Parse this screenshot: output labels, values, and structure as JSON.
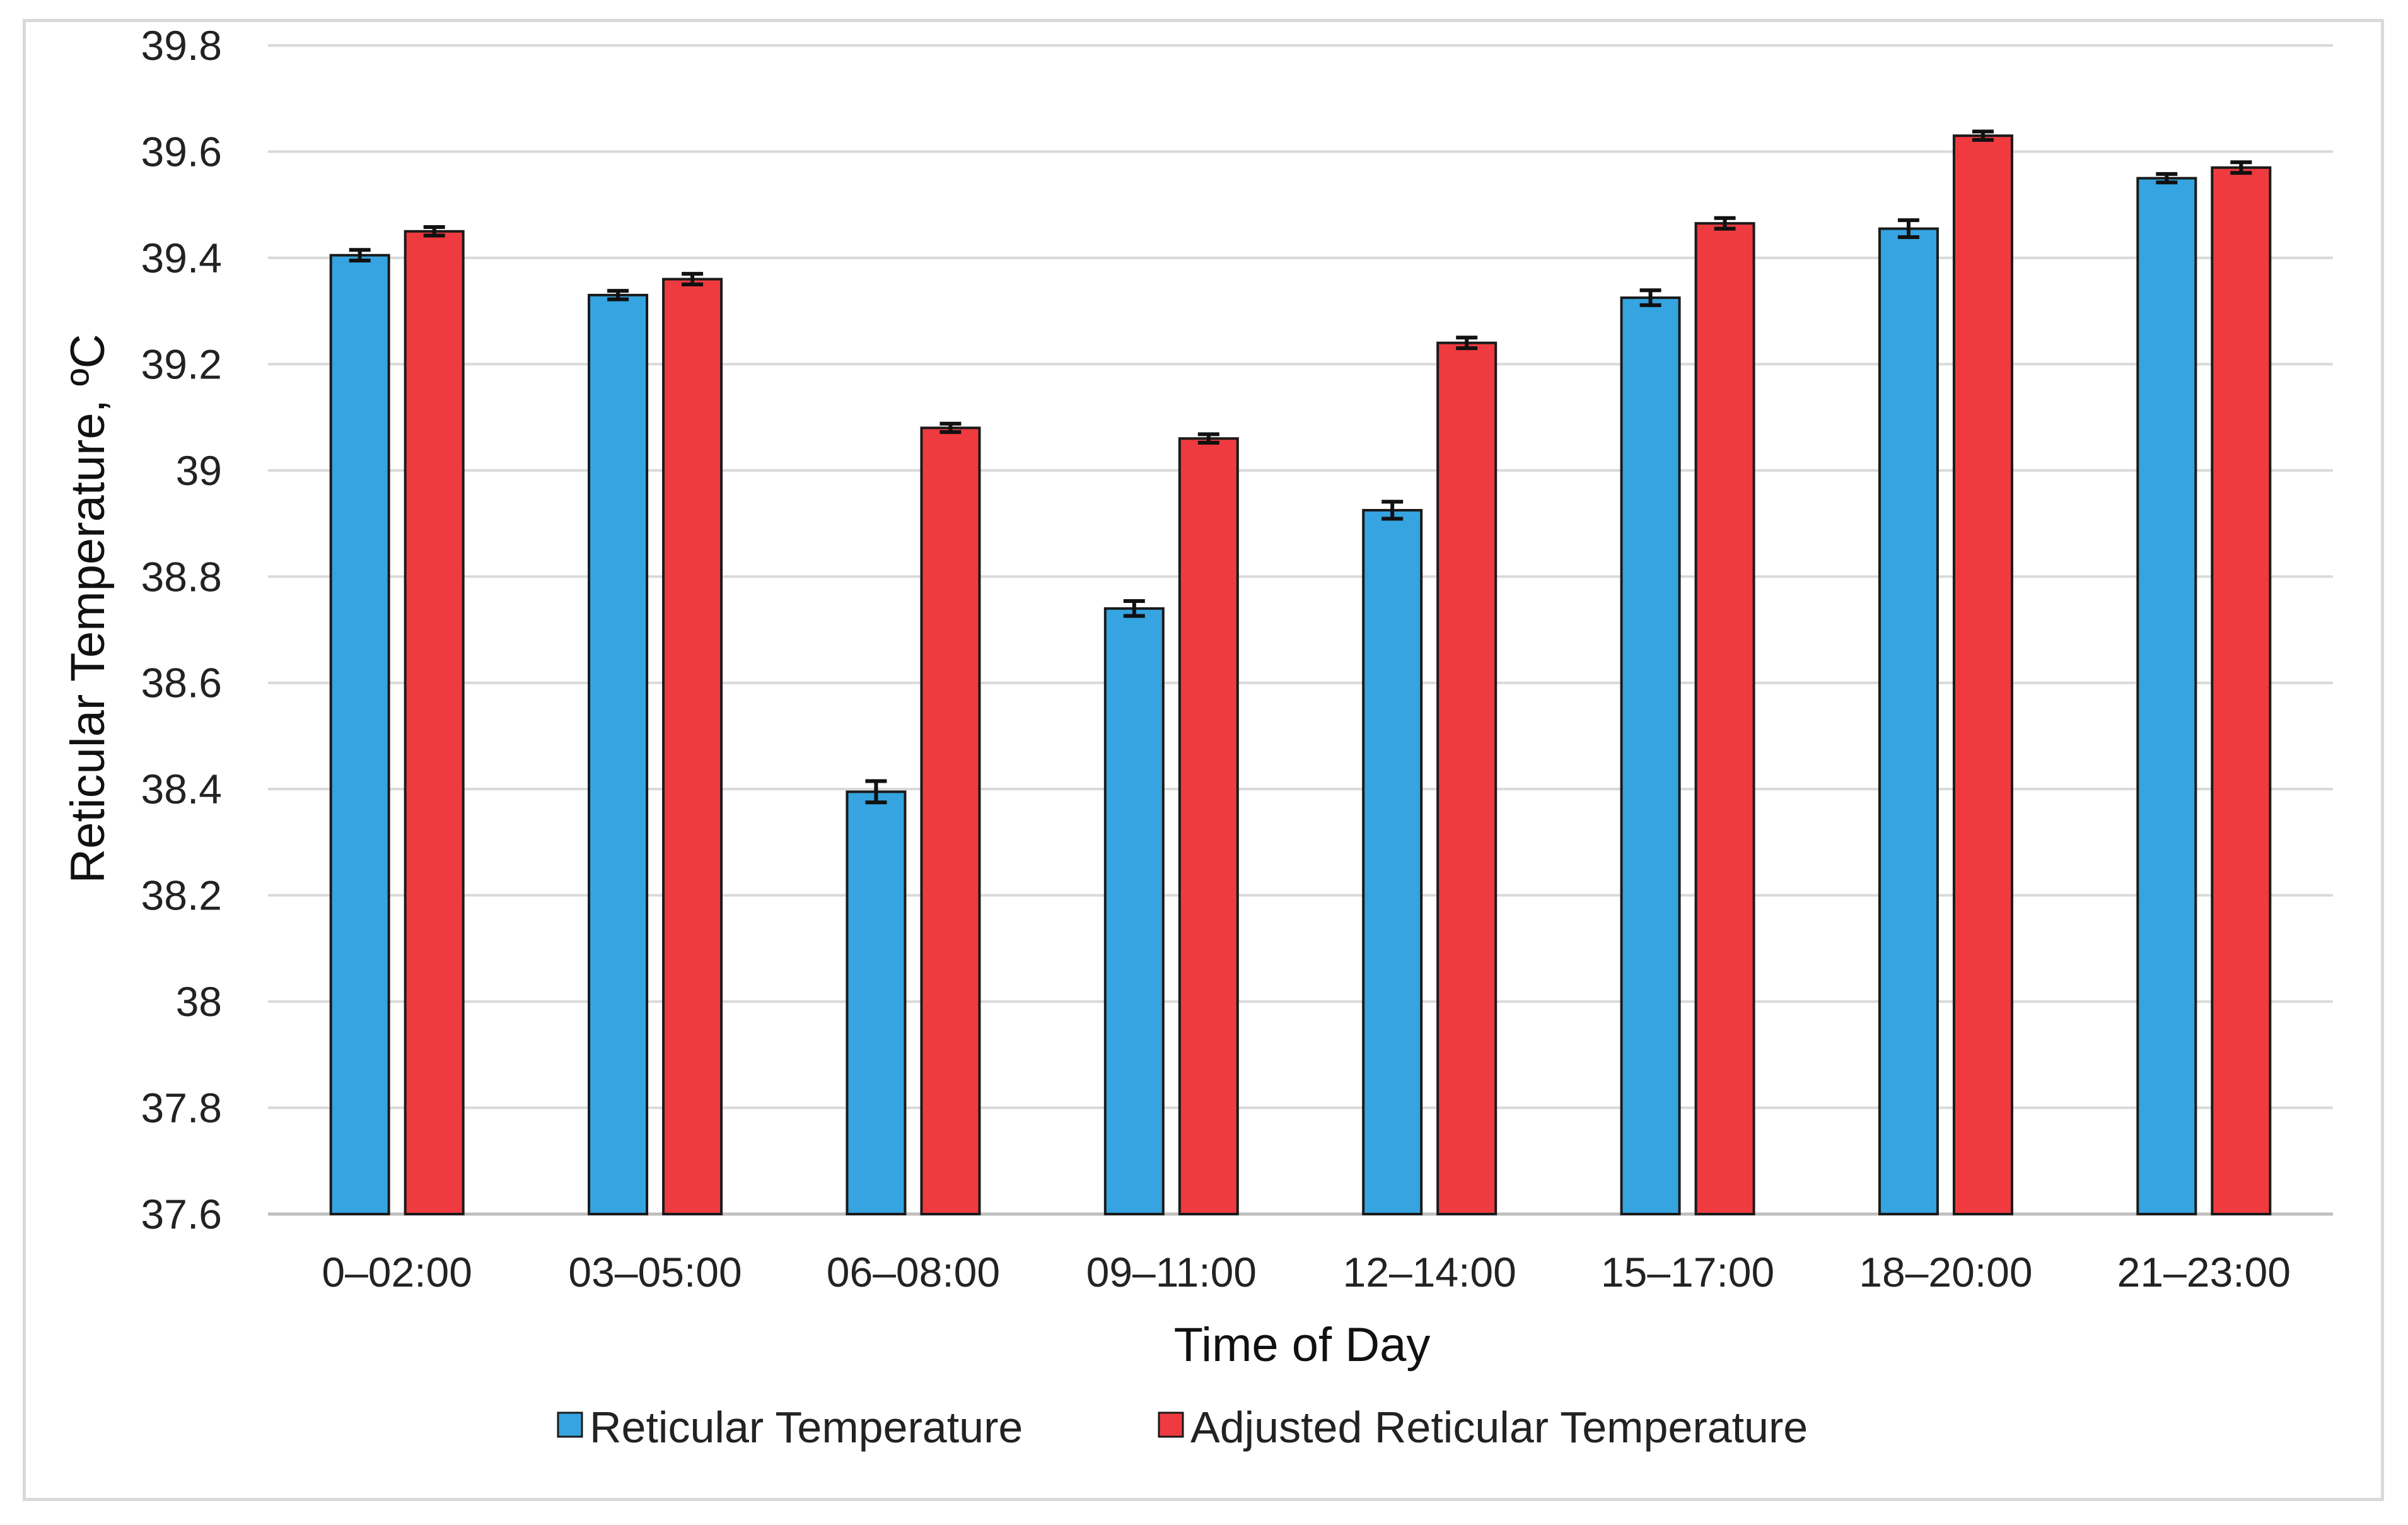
{
  "chart_data": {
    "type": "bar",
    "title": "",
    "xlabel": "Time of Day",
    "ylabel": "Reticular Temperature, ºC",
    "ylim": [
      37.6,
      39.8
    ],
    "yticks": [
      "37.6",
      "37.8",
      "38",
      "38.2",
      "38.4",
      "38.6",
      "38.8",
      "39",
      "39.2",
      "39.4",
      "39.6",
      "39.8"
    ],
    "grid": "horizontal",
    "legend_position": "bottom",
    "categories": [
      "0–02:00",
      "03–05:00",
      "06–08:00",
      "09–11:00",
      "12–14:00",
      "15–17:00",
      "18–20:00",
      "21–23:00"
    ],
    "series": [
      {
        "name": "Reticular Temperature",
        "color": "#35a4e0",
        "values": [
          39.405,
          39.33,
          38.395,
          38.74,
          38.925,
          39.325,
          39.455,
          39.55
        ],
        "errors": [
          0.01,
          0.008,
          0.02,
          0.014,
          0.016,
          0.014,
          0.016,
          0.008
        ]
      },
      {
        "name": "Adjusted Reticular Temperature",
        "color": "#ef3b3f",
        "values": [
          39.45,
          39.36,
          39.08,
          39.06,
          39.24,
          39.465,
          39.63,
          39.57
        ],
        "errors": [
          0.008,
          0.01,
          0.008,
          0.008,
          0.01,
          0.01,
          0.008,
          0.01
        ]
      }
    ]
  }
}
